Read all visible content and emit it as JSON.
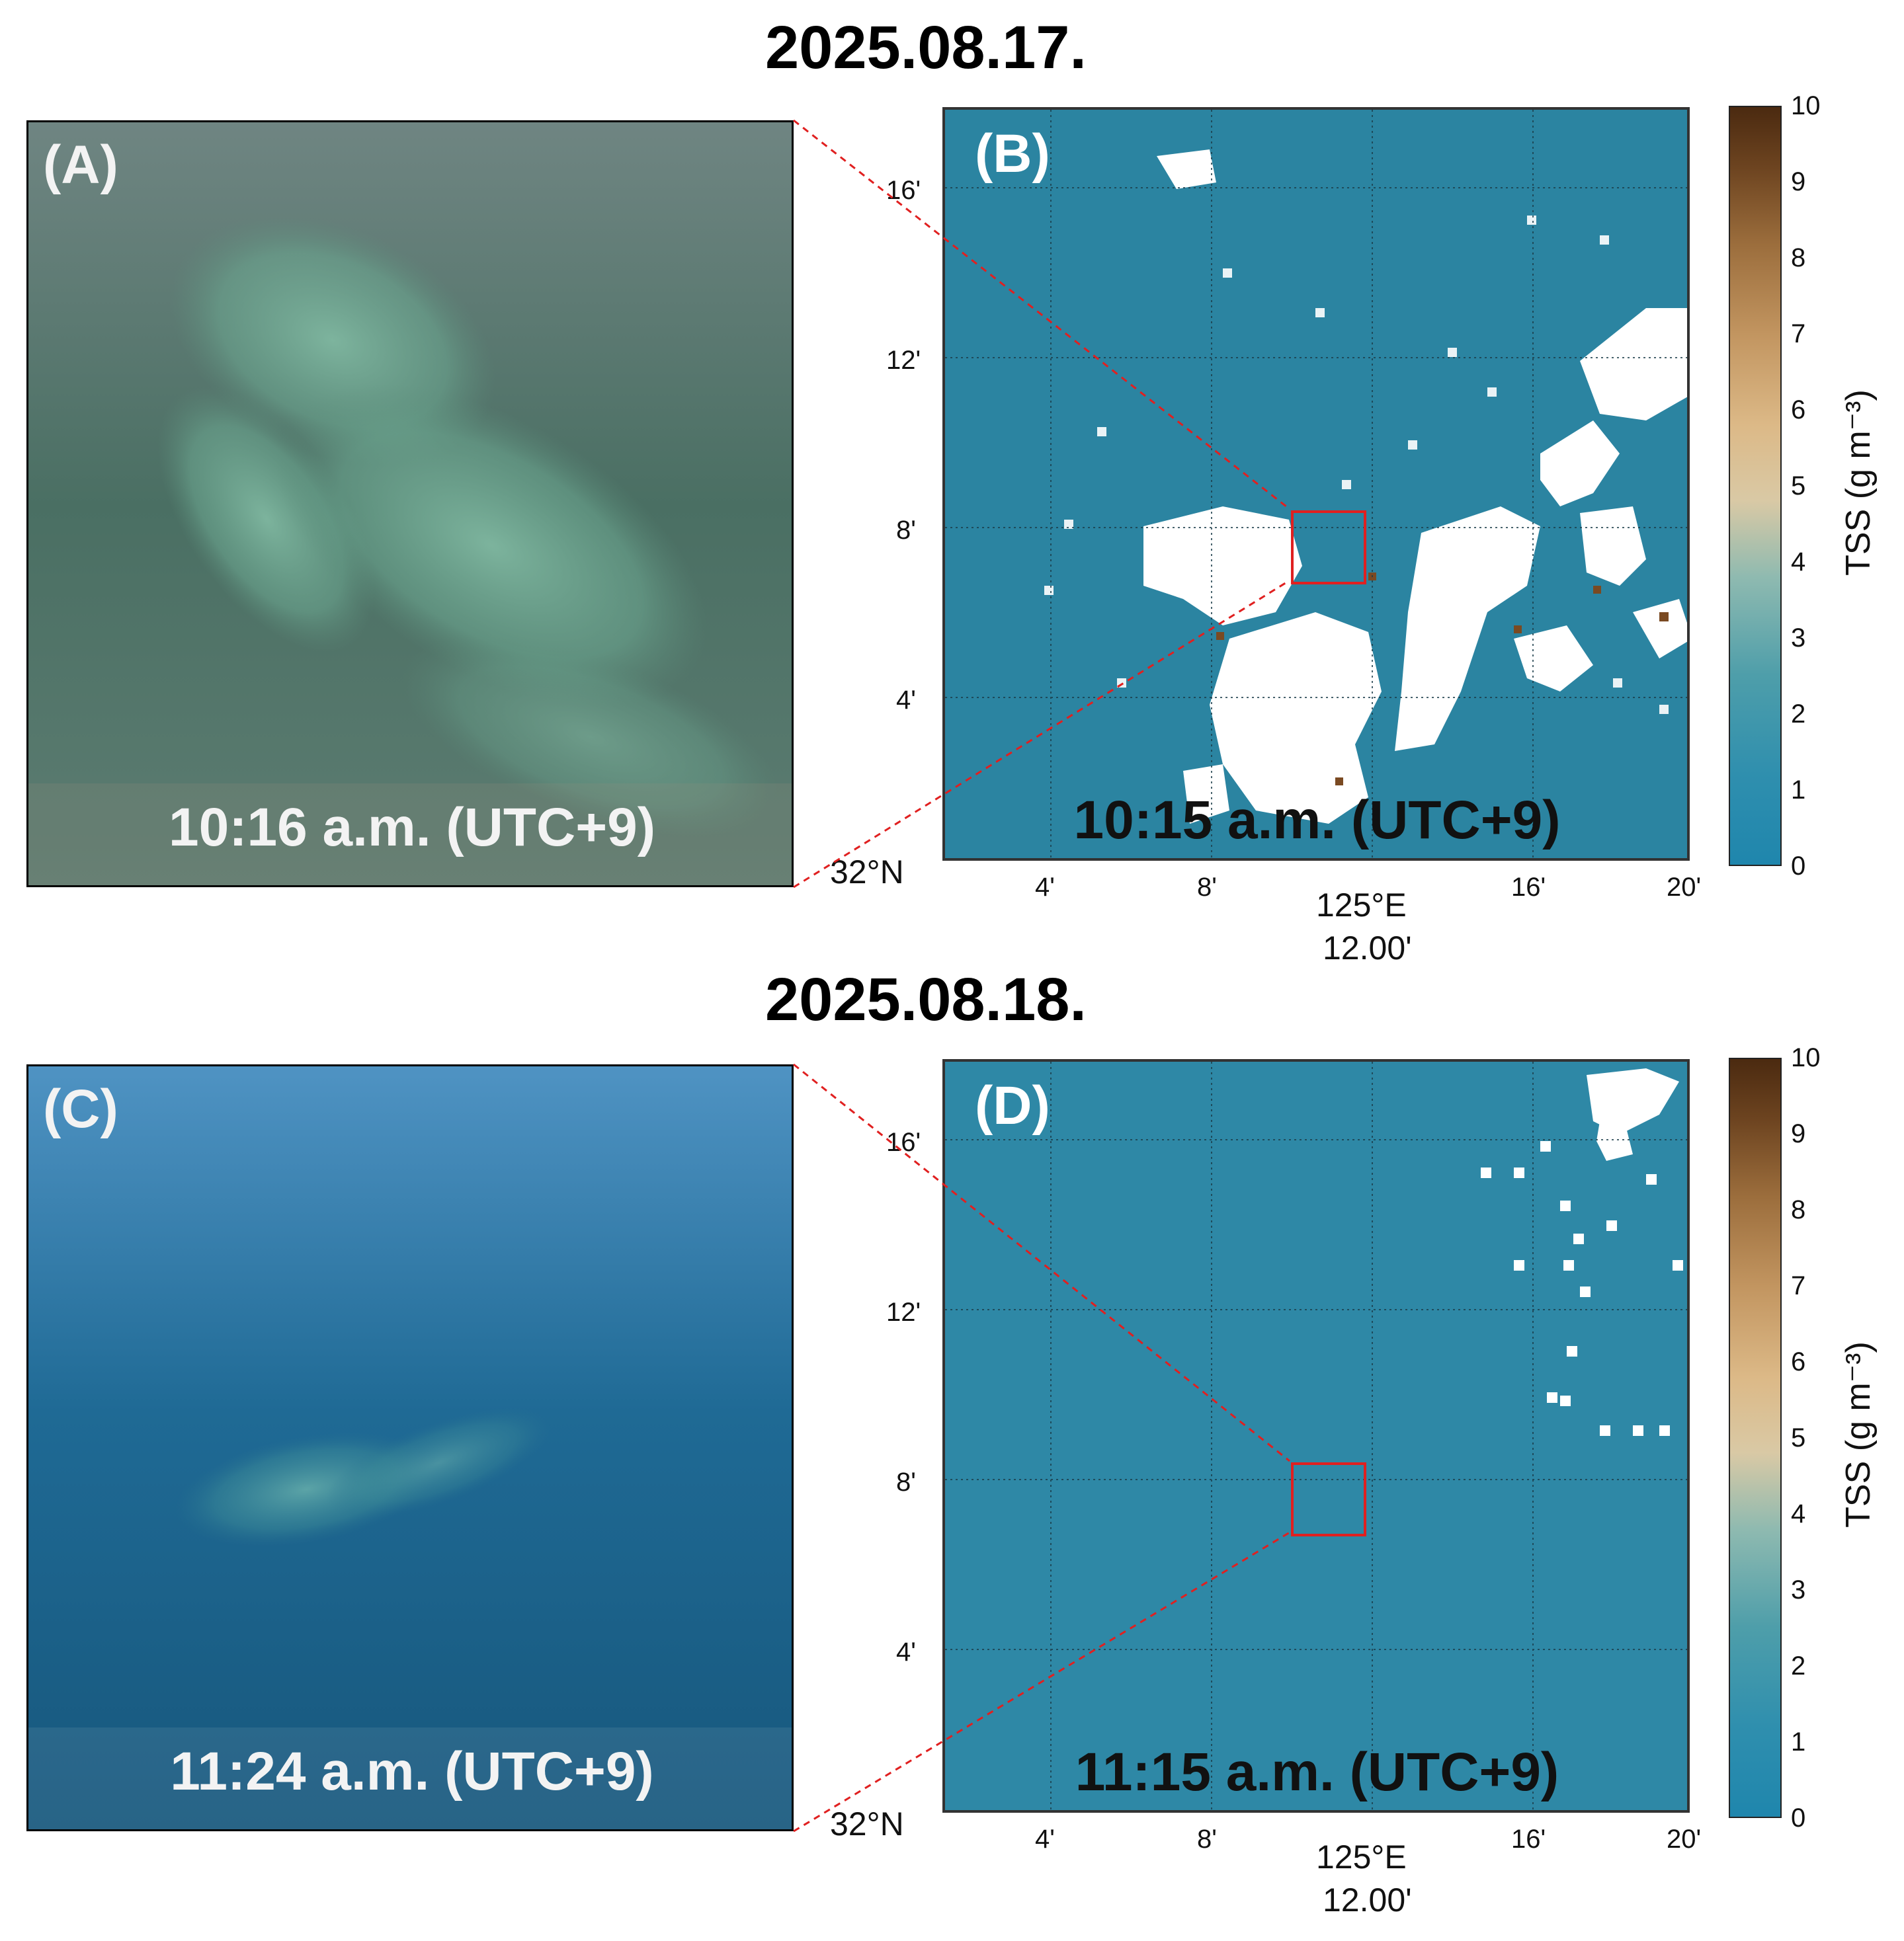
{
  "panels": [
    {
      "date": "2025.08.17.",
      "photo": {
        "label": "(A)",
        "time": "10:16 a.m. (UTC+9)"
      },
      "map": {
        "label": "(B)",
        "time": "10:15 a.m. (UTC+9)"
      }
    },
    {
      "date": "2025.08.18.",
      "photo": {
        "label": "(C)",
        "time": "11:24 a.m. (UTC+9)"
      },
      "map": {
        "label": "(D)",
        "time": "11:15 a.m. (UTC+9)"
      }
    }
  ],
  "map_axes": {
    "y_ticks": [
      "16'",
      "12'",
      "8'",
      "4'"
    ],
    "y_origin": "32°N",
    "x_ticks": [
      "4'",
      "8'",
      "125°E",
      "16'",
      "20'"
    ],
    "x_center_sub": "12.00'"
  },
  "colorbar": {
    "title": "TSS (g m⁻³)",
    "ticks": [
      "10",
      "9",
      "8",
      "7",
      "6",
      "5",
      "4",
      "3",
      "2",
      "1",
      "0"
    ]
  },
  "colors": {
    "water_high_tss": "#2b84a1",
    "water_low_tss": "#2e88a6",
    "highlight_box": "#e02020",
    "leader_line": "#e02020"
  }
}
